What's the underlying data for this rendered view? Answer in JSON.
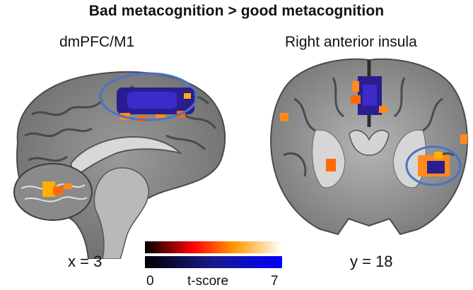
{
  "title": "Bad metacognition > good metacognition",
  "panels": [
    {
      "label": "dmPFC/M1",
      "coordinate": "x = 3"
    },
    {
      "label": "Right anterior insula",
      "coordinate": "y = 18"
    }
  ],
  "colorbar": {
    "min_label": "0",
    "axis_label": "t-score",
    "max_label": "7",
    "positive_colors": [
      "#000000",
      "#ff0000",
      "#ff9a00",
      "#ffffff"
    ],
    "negative_colors": [
      "#000000",
      "#1a1a8c",
      "#0000ff"
    ]
  },
  "colors": {
    "highlight_ellipse": "#4a73c7",
    "activation_hot": "#ff8a1a",
    "activation_cool": "#2a1d8f"
  }
}
